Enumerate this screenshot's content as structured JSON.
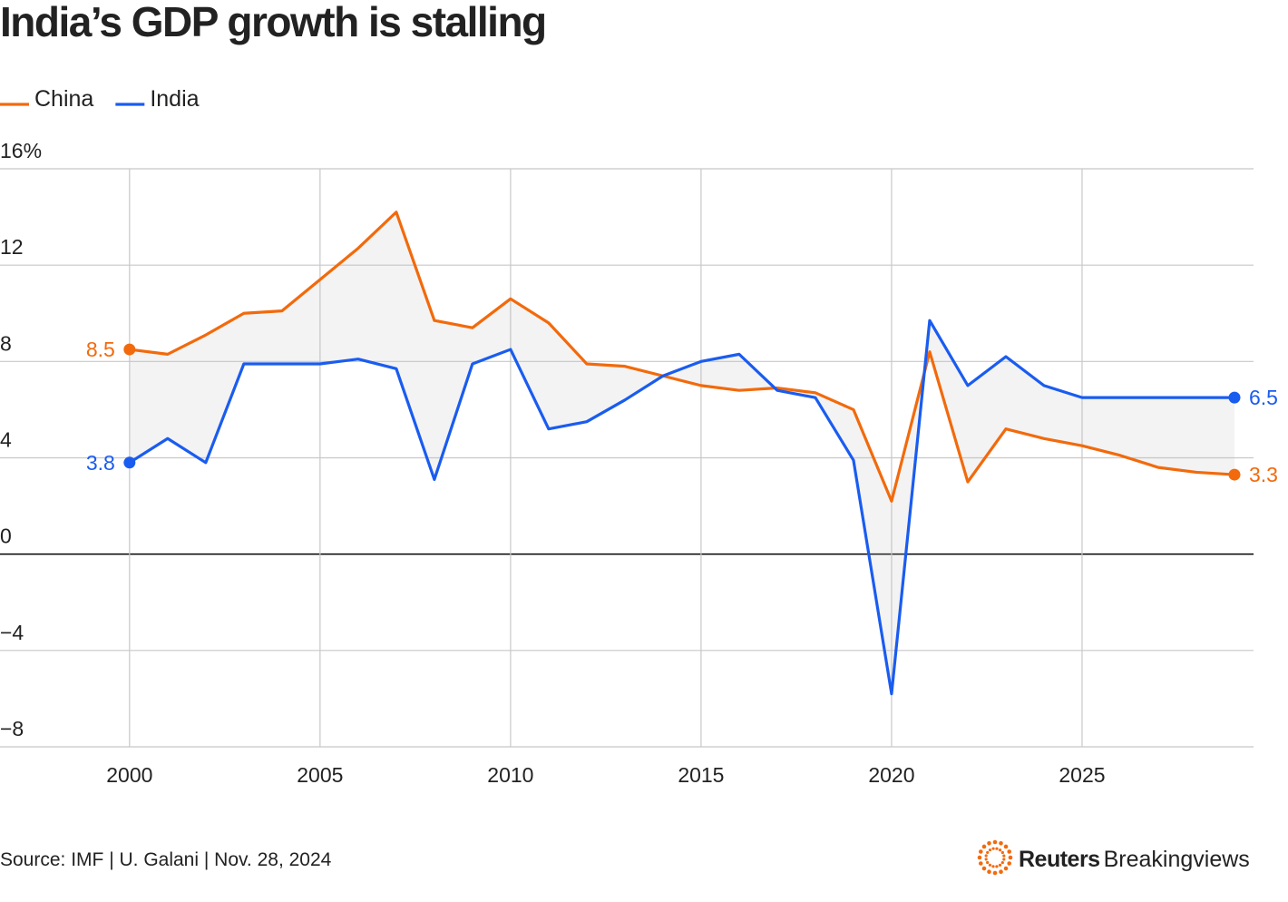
{
  "chart_data": {
    "type": "line",
    "title": "India’s GDP growth is stalling",
    "x": [
      2000,
      2001,
      2002,
      2003,
      2004,
      2005,
      2006,
      2007,
      2008,
      2009,
      2010,
      2011,
      2012,
      2013,
      2014,
      2015,
      2016,
      2017,
      2018,
      2019,
      2020,
      2021,
      2022,
      2023,
      2024,
      2025,
      2026,
      2027,
      2028,
      2029
    ],
    "series": [
      {
        "name": "China",
        "color": "#f26a0c",
        "values": [
          8.5,
          8.3,
          9.1,
          10.0,
          10.1,
          11.4,
          12.7,
          14.2,
          9.7,
          9.4,
          10.6,
          9.6,
          7.9,
          7.8,
          7.4,
          7.0,
          6.8,
          6.9,
          6.7,
          6.0,
          2.2,
          8.4,
          3.0,
          5.2,
          4.8,
          4.5,
          4.1,
          3.6,
          3.4,
          3.3
        ]
      },
      {
        "name": "India",
        "color": "#1a5cf0",
        "values": [
          3.8,
          4.8,
          3.8,
          7.9,
          7.9,
          7.9,
          8.1,
          7.7,
          3.1,
          7.9,
          8.5,
          5.2,
          5.5,
          6.4,
          7.4,
          8.0,
          8.3,
          6.8,
          6.5,
          3.9,
          -5.8,
          9.7,
          7.0,
          8.2,
          7.0,
          6.5,
          6.5,
          6.5,
          6.5,
          6.5
        ]
      }
    ],
    "xlim": [
      1996.6,
      2029.5
    ],
    "xticks": [
      2000,
      2005,
      2010,
      2015,
      2020,
      2025
    ],
    "ylim": [
      -8,
      16
    ],
    "yticks": [
      {
        "value": -8,
        "label": "−8"
      },
      {
        "value": -4,
        "label": "−4"
      },
      0,
      4,
      8,
      12,
      {
        "value": 16,
        "label": "16%"
      }
    ],
    "grid": true,
    "legend": "top-left",
    "source": "Source: IMF | U. Galani | Nov. 28, 2024",
    "brand": {
      "name": "Reuters",
      "product": "Breakingviews"
    }
  }
}
